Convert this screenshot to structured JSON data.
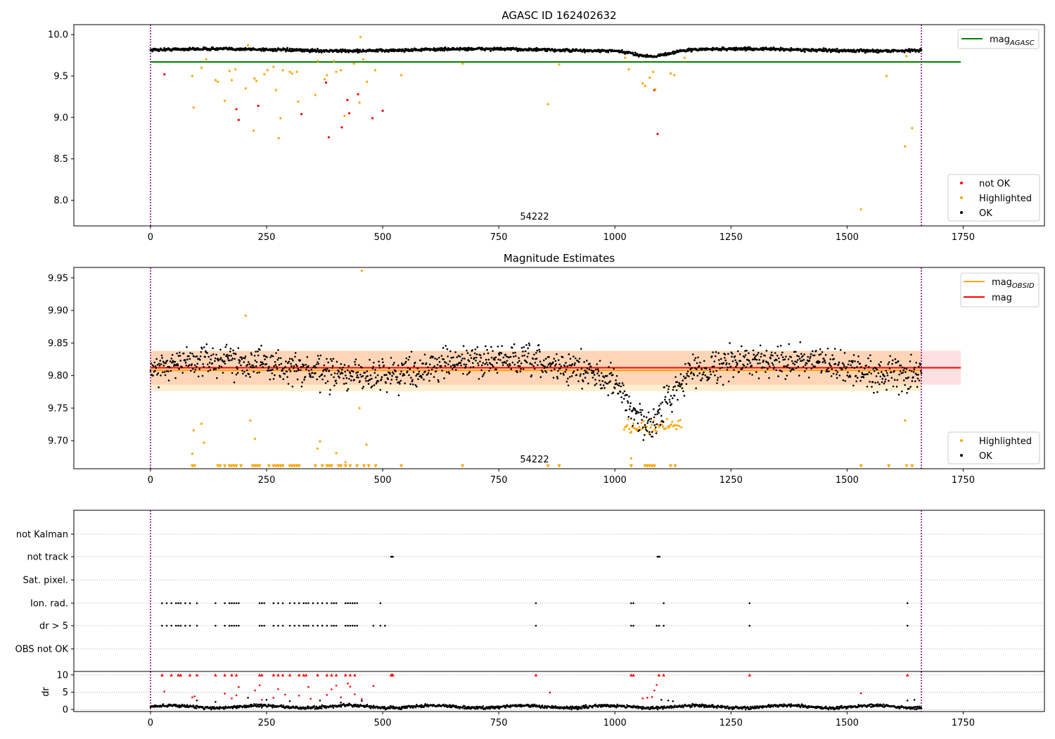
{
  "chart_data": [
    {
      "type": "scatter",
      "title": "AGASC ID 162402632",
      "xlim": [
        -165,
        1925
      ],
      "ylim": [
        7.69,
        10.12
      ],
      "xticks": [
        "0",
        "250",
        "500",
        "750",
        "1000",
        "1250",
        "1500",
        "1750"
      ],
      "xtick_values": [
        0,
        250,
        500,
        750,
        1000,
        1250,
        1500,
        1750
      ],
      "yticks": [
        "8.0",
        "8.5",
        "9.0",
        "9.5",
        "10.0"
      ],
      "ytick_values": [
        8.0,
        8.5,
        9.0,
        9.5,
        10.0
      ],
      "obsid_label": "54222",
      "obsid_label_x": 827,
      "obsid_bounds": [
        0,
        1660
      ],
      "reference_line": {
        "name": "mag",
        "subscript": "AGASC",
        "y": 9.67,
        "x": [
          0,
          1745
        ],
        "color": "#008000"
      },
      "legend_lines": [
        {
          "name": "mag",
          "subscript": "AGASC",
          "color": "#008000"
        }
      ],
      "legend_markers": [
        {
          "name": "not OK",
          "color": "#ff0000"
        },
        {
          "name": "Highlighted",
          "color": "#ffa500"
        },
        {
          "name": "OK",
          "color": "#000000"
        }
      ],
      "series": [
        {
          "name": "not OK",
          "color": "#ff0000",
          "points": [
            [
              30,
              9.52
            ],
            [
              185,
              9.1
            ],
            [
              190,
              8.97
            ],
            [
              232,
              9.14
            ],
            [
              325,
              9.04
            ],
            [
              378,
              9.42
            ],
            [
              384,
              8.76
            ],
            [
              412,
              8.88
            ],
            [
              424,
              9.21
            ],
            [
              428,
              9.05
            ],
            [
              447,
              9.28
            ],
            [
              478,
              8.99
            ],
            [
              500,
              9.08
            ],
            [
              1085,
              9.33
            ],
            [
              1092,
              8.8
            ]
          ]
        },
        {
          "name": "Highlighted",
          "color": "#ffa500",
          "points": [
            [
              90,
              9.5
            ],
            [
              93,
              9.12
            ],
            [
              110,
              9.6
            ],
            [
              120,
              9.7
            ],
            [
              140,
              9.45
            ],
            [
              145,
              9.43
            ],
            [
              160,
              9.2
            ],
            [
              170,
              9.56
            ],
            [
              175,
              9.45
            ],
            [
              183,
              9.58
            ],
            [
              205,
              9.35
            ],
            [
              210,
              9.87
            ],
            [
              222,
              8.84
            ],
            [
              224,
              9.47
            ],
            [
              228,
              9.44
            ],
            [
              245,
              9.52
            ],
            [
              252,
              9.57
            ],
            [
              265,
              9.61
            ],
            [
              270,
              9.33
            ],
            [
              276,
              8.75
            ],
            [
              280,
              8.99
            ],
            [
              285,
              9.57
            ],
            [
              300,
              9.55
            ],
            [
              305,
              9.53
            ],
            [
              315,
              9.55
            ],
            [
              318,
              9.19
            ],
            [
              355,
              9.27
            ],
            [
              360,
              9.68
            ],
            [
              375,
              9.46
            ],
            [
              380,
              9.51
            ],
            [
              395,
              9.68
            ],
            [
              400,
              9.55
            ],
            [
              410,
              9.57
            ],
            [
              418,
              9.02
            ],
            [
              438,
              9.65
            ],
            [
              450,
              9.18
            ],
            [
              452,
              9.97
            ],
            [
              458,
              9.7
            ],
            [
              466,
              9.43
            ],
            [
              484,
              9.57
            ],
            [
              540,
              9.51
            ],
            [
              672,
              9.65
            ],
            [
              856,
              9.16
            ],
            [
              880,
              9.64
            ],
            [
              1022,
              9.72
            ],
            [
              1030,
              9.58
            ],
            [
              1060,
              9.41
            ],
            [
              1065,
              9.38
            ],
            [
              1075,
              9.48
            ],
            [
              1082,
              9.55
            ],
            [
              1087,
              9.34
            ],
            [
              1120,
              9.53
            ],
            [
              1128,
              9.51
            ],
            [
              1150,
              9.72
            ],
            [
              1585,
              9.5
            ],
            [
              1625,
              8.65
            ],
            [
              1628,
              9.74
            ],
            [
              1640,
              8.87
            ],
            [
              1530,
              7.89
            ]
          ]
        },
        {
          "name": "OK",
          "color": "#000000",
          "generator": "agasc_mag",
          "x": [
            0,
            1660
          ]
        }
      ]
    },
    {
      "type": "scatter",
      "title": "Magnitude Estimates",
      "xlim": [
        -165,
        1925
      ],
      "ylim": [
        9.657,
        9.966
      ],
      "xticks": [
        "0",
        "250",
        "500",
        "750",
        "1000",
        "1250",
        "1500",
        "1750"
      ],
      "xtick_values": [
        0,
        250,
        500,
        750,
        1000,
        1250,
        1500,
        1750
      ],
      "yticks": [
        "9.70",
        "9.75",
        "9.80",
        "9.85",
        "9.90",
        "9.95"
      ],
      "ytick_values": [
        9.7,
        9.75,
        9.8,
        9.85,
        9.9,
        9.95
      ],
      "obsid_label": "54222",
      "obsid_label_x": 827,
      "obsid_bounds": [
        0,
        1660
      ],
      "bands": [
        {
          "name": "mag",
          "color": "#ff0000",
          "opacity": 0.12,
          "y": [
            9.786,
            9.838
          ],
          "x": [
            0,
            1745
          ]
        },
        {
          "name": "mag_OBSID",
          "color": "#ffa500",
          "opacity": 0.18,
          "y": [
            9.776,
            9.838
          ],
          "x": [
            0,
            1660
          ]
        }
      ],
      "lines": [
        {
          "name": "mag",
          "subscript": "OBSID",
          "color": "#ffa500",
          "y": 9.808,
          "x": [
            0,
            1660
          ]
        },
        {
          "name": "mag",
          "subscript": "",
          "color": "#ff0000",
          "y": 9.812,
          "x": [
            0,
            1745
          ]
        }
      ],
      "legend_lines": [
        {
          "name": "mag",
          "subscript": "OBSID",
          "color": "#ffa500"
        },
        {
          "name": "mag",
          "subscript": "",
          "color": "#ff0000"
        }
      ],
      "legend_markers": [
        {
          "name": "Highlighted",
          "color": "#ffa500"
        },
        {
          "name": "OK",
          "color": "#000000"
        }
      ],
      "series": [
        {
          "name": "Highlighted",
          "color": "#ffa500",
          "points": [
            [
              90,
              9.68
            ],
            [
              93,
              9.716
            ],
            [
              110,
              9.726
            ],
            [
              115,
              9.697
            ],
            [
              205,
              9.892
            ],
            [
              215,
              9.731
            ],
            [
              225,
              9.703
            ],
            [
              360,
              9.688
            ],
            [
              365,
              9.699
            ],
            [
              400,
              9.681
            ],
            [
              420,
              9.667
            ],
            [
              450,
              9.75
            ],
            [
              455,
              9.961
            ],
            [
              465,
              9.694
            ],
            [
              1035,
              9.673
            ],
            [
              1625,
              9.731
            ]
          ]
        },
        {
          "name": "Highlighted (dip)",
          "color": "#ffa500",
          "generator": "dip_highlighted",
          "x": [
            1020,
            1145
          ]
        },
        {
          "name": "Highlighted (below range)",
          "color": "#ffa500",
          "marker": "triangle-down",
          "y": 9.661,
          "x": [
            90,
            95,
            145,
            150,
            160,
            170,
            175,
            180,
            185,
            195,
            220,
            225,
            230,
            235,
            255,
            265,
            270,
            275,
            280,
            285,
            300,
            305,
            310,
            315,
            320,
            355,
            370,
            380,
            385,
            390,
            405,
            410,
            420,
            430,
            445,
            460,
            470,
            485,
            540,
            672,
            856,
            880,
            1035,
            1065,
            1070,
            1075,
            1080,
            1085,
            1120,
            1130,
            1530,
            1590,
            1628,
            1640
          ]
        },
        {
          "name": "OK",
          "color": "#000000",
          "generator": "mag_estimates",
          "x": [
            0,
            1660
          ]
        }
      ]
    },
    {
      "type": "scatter",
      "title": "",
      "xlim": [
        -165,
        1925
      ],
      "obsid_bounds": [
        0,
        1660
      ],
      "xticks": [
        "0",
        "250",
        "500",
        "750",
        "1000",
        "1250",
        "1500",
        "1750"
      ],
      "xtick_values": [
        0,
        250,
        500,
        750,
        1000,
        1250,
        1500,
        1750
      ],
      "flag_rows": [
        "not Kalman",
        "not track",
        "Sat. pixel.",
        "Ion. rad.",
        "dr > 5",
        "OBS not OK"
      ],
      "flags": {
        "not Kalman": [],
        "not track": [
          518,
          520,
          522,
          1092,
          1094,
          1096
        ],
        "Sat. pixel.": [],
        "Ion. rad.": [
          25,
          35,
          45,
          55,
          60,
          65,
          75,
          85,
          100,
          140,
          160,
          170,
          175,
          180,
          185,
          190,
          235,
          240,
          245,
          265,
          275,
          285,
          300,
          310,
          320,
          330,
          335,
          340,
          350,
          360,
          370,
          380,
          390,
          395,
          400,
          420,
          425,
          430,
          435,
          440,
          445,
          495,
          830,
          1035,
          1040,
          1105,
          1290,
          1630
        ],
        "dr > 5": [
          25,
          35,
          45,
          55,
          60,
          65,
          75,
          85,
          100,
          140,
          160,
          170,
          175,
          180,
          185,
          190,
          235,
          240,
          245,
          265,
          275,
          285,
          300,
          310,
          320,
          330,
          335,
          340,
          350,
          360,
          370,
          380,
          390,
          395,
          400,
          420,
          425,
          430,
          435,
          440,
          445,
          480,
          495,
          505,
          830,
          1035,
          1040,
          1090,
          1095,
          1105,
          1290,
          1630
        ],
        "OBS not OK": []
      },
      "dr_axis": {
        "ylabel": "dr",
        "yticks": [
          "0",
          "5",
          "10"
        ],
        "ytick_values": [
          0,
          5,
          10
        ],
        "ylim": [
          -0.6,
          11
        ]
      },
      "dr_series": [
        {
          "name": "dr large",
          "color": "#ff0000",
          "marker": "triangle-up",
          "y": 10,
          "x": [
            25,
            45,
            60,
            65,
            85,
            100,
            140,
            160,
            175,
            185,
            235,
            240,
            265,
            275,
            285,
            300,
            320,
            330,
            335,
            360,
            380,
            390,
            400,
            420,
            430,
            440,
            518,
            520,
            522,
            830,
            1035,
            1040,
            1095,
            1105,
            1290,
            1630
          ]
        },
        {
          "name": "dr mid",
          "color": "#ff0000",
          "points": [
            [
              30,
              5.2
            ],
            [
              90,
              3.5
            ],
            [
              95,
              3.8
            ],
            [
              160,
              4.6
            ],
            [
              175,
              3.2
            ],
            [
              185,
              4.1
            ],
            [
              190,
              6.5
            ],
            [
              225,
              5.5
            ],
            [
              235,
              7.0
            ],
            [
              240,
              2.8
            ],
            [
              265,
              3.4
            ],
            [
              275,
              5.9
            ],
            [
              290,
              4.3
            ],
            [
              320,
              4.0
            ],
            [
              340,
              6.5
            ],
            [
              345,
              3.1
            ],
            [
              380,
              4.2
            ],
            [
              390,
              5.8
            ],
            [
              400,
              6.9
            ],
            [
              410,
              3.5
            ],
            [
              425,
              7.5
            ],
            [
              430,
              6.6
            ],
            [
              440,
              4.4
            ],
            [
              455,
              3.0
            ],
            [
              480,
              6.8
            ],
            [
              860,
              4.9
            ],
            [
              1060,
              3.2
            ],
            [
              1070,
              3.4
            ],
            [
              1080,
              3.6
            ],
            [
              1085,
              5.5
            ],
            [
              1090,
              7.1
            ],
            [
              1530,
              4.7
            ]
          ]
        },
        {
          "name": "dr black outliers",
          "color": "#000000",
          "points": [
            [
              100,
              2.6
            ],
            [
              140,
              2.2
            ],
            [
              210,
              3.4
            ],
            [
              250,
              2.8
            ],
            [
              300,
              2.4
            ],
            [
              365,
              2.6
            ],
            [
              410,
              2.0
            ],
            [
              455,
              2.5
            ],
            [
              1100,
              2.8
            ],
            [
              1115,
              2.6
            ],
            [
              1125,
              2.4
            ],
            [
              1630,
              2.6
            ],
            [
              1645,
              2.8
            ]
          ]
        },
        {
          "name": "dr OK",
          "color": "#000000",
          "generator": "dr_baseline",
          "x": [
            0,
            1660
          ]
        }
      ]
    }
  ]
}
